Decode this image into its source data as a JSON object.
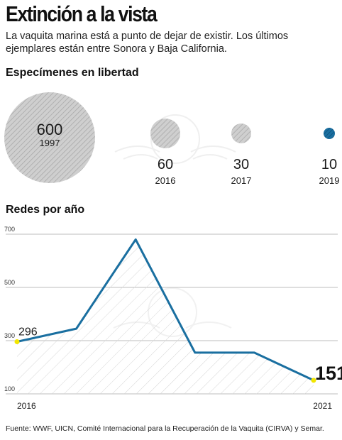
{
  "header": {
    "title": "Extinción a la vista",
    "subtitle": "La vaquita marina está a punto de dejar de existir. Los últimos ejemplares están entre Sonora y Baja California."
  },
  "specimens": {
    "title": "Especímenes en libertad",
    "items": [
      {
        "value": "600",
        "year": "1997"
      },
      {
        "value": "60",
        "year": "2016"
      },
      {
        "value": "30",
        "year": "2017"
      },
      {
        "value": "10",
        "year": "2019"
      }
    ]
  },
  "nets": {
    "title": "Redes por año",
    "start_label": "296",
    "end_label": "151"
  },
  "source": "Fuente: WWF, UICN, Comité Internacional para la Recuperación de la Vaquita (CIRVA) y Semar.",
  "colors": {
    "line": "#1a6fa0",
    "circle_gray": "#c4c4c4",
    "circle_blue": "#1a6fa0",
    "marker": "#f2e600"
  },
  "chart_data": [
    {
      "type": "bubble",
      "title": "Especímenes en libertad",
      "categories": [
        "1997",
        "2016",
        "2017",
        "2019"
      ],
      "values": [
        600,
        60,
        30,
        10
      ]
    },
    {
      "type": "area",
      "title": "Redes por año",
      "x_tick_labels": [
        "2016",
        "2021"
      ],
      "y_ticks": [
        100,
        300,
        500,
        700
      ],
      "ylim": [
        100,
        700
      ],
      "grid": true,
      "values": [
        296,
        345,
        680,
        255,
        255,
        151
      ],
      "annotations": [
        "296",
        "151"
      ]
    }
  ]
}
